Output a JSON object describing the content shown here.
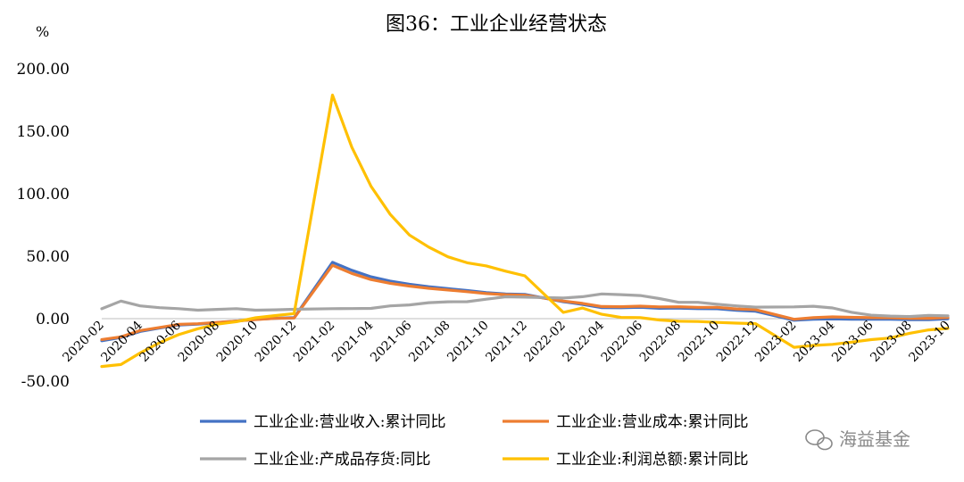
{
  "title": "图36：工业企业经营状态",
  "watermark": {
    "text": "海益基金",
    "icon": "wechat-icon",
    "color": "#8a8a8a"
  },
  "chart_data": {
    "type": "line",
    "title": "图36：工业企业经营状态",
    "ylabel": "%",
    "ylim": [
      -50,
      200
    ],
    "yticks": [
      "200.00",
      "150.00",
      "100.00",
      "50.00",
      "0.00",
      "-50.00"
    ],
    "ytick_values": [
      200,
      150,
      100,
      50,
      0,
      -50
    ],
    "grid": false,
    "legend_position": "bottom",
    "x": [
      "2020-02",
      "2020-03",
      "2020-04",
      "2020-05",
      "2020-06",
      "2020-07",
      "2020-08",
      "2020-09",
      "2020-10",
      "2020-11",
      "2020-12",
      "2021-01",
      "2021-02",
      "2021-03",
      "2021-04",
      "2021-05",
      "2021-06",
      "2021-07",
      "2021-08",
      "2021-09",
      "2021-10",
      "2021-11",
      "2021-12",
      "2022-01",
      "2022-02",
      "2022-03",
      "2022-04",
      "2022-05",
      "2022-06",
      "2022-07",
      "2022-08",
      "2022-09",
      "2022-10",
      "2022-11",
      "2022-12",
      "2023-01",
      "2023-02",
      "2023-03",
      "2023-04",
      "2023-05",
      "2023-06",
      "2023-07",
      "2023-08",
      "2023-09",
      "2023-10"
    ],
    "xticks": [
      "2020-02",
      "2020-04",
      "2020-06",
      "2020-08",
      "2020-10",
      "2020-12",
      "2021-02",
      "2021-04",
      "2021-06",
      "2021-08",
      "2021-10",
      "2021-12",
      "2022-02",
      "2022-04",
      "2022-06",
      "2022-08",
      "2022-10",
      "2022-12",
      "2023-02",
      "2023-04",
      "2023-06",
      "2023-08",
      "2023-10"
    ],
    "series": [
      {
        "name": "工业企业:营业收入:累计同比",
        "color": "#4472C4",
        "values": [
          -17.7,
          -15.1,
          -10.2,
          -7.6,
          -5.1,
          -4.4,
          -3.2,
          -1.9,
          -0.6,
          0.3,
          0.8,
          null,
          45.1,
          38.7,
          33.5,
          30.1,
          27.6,
          25.6,
          24.0,
          22.5,
          20.8,
          19.8,
          19.4,
          null,
          13.6,
          11.4,
          8.8,
          8.7,
          9.1,
          8.3,
          8.4,
          8.0,
          7.9,
          6.7,
          5.9,
          null,
          -1.3,
          -0.5,
          -0.2,
          -0.4,
          -0.4,
          -0.5,
          -0.8,
          -0.8,
          -0.1
        ]
      },
      {
        "name": "工业企业:营业成本:累计同比",
        "color": "#ED7D31",
        "values": [
          -16.7,
          -14.6,
          -9.5,
          -7.1,
          -4.6,
          -4.1,
          -3.0,
          -1.9,
          -0.7,
          0.2,
          0.5,
          null,
          42.7,
          36.2,
          31.3,
          28.3,
          26.1,
          24.3,
          22.9,
          21.6,
          20.1,
          19.2,
          18.8,
          null,
          14.1,
          12.2,
          9.7,
          9.6,
          10.0,
          9.4,
          9.5,
          9.1,
          9.1,
          7.8,
          7.2,
          null,
          -0.5,
          0.8,
          1.4,
          1.1,
          0.8,
          0.7,
          0.3,
          0.3,
          0.9
        ]
      },
      {
        "name": "工业企业:产成品存货:同比",
        "color": "#A5A5A5",
        "values": [
          7.9,
          14.1,
          10.2,
          8.8,
          8.0,
          6.8,
          7.4,
          8.0,
          6.8,
          7.1,
          7.5,
          null,
          8.0,
          8.1,
          8.2,
          10.2,
          11.0,
          12.8,
          13.5,
          13.6,
          15.6,
          17.5,
          17.2,
          null,
          16.5,
          17.6,
          19.8,
          19.2,
          18.5,
          16.1,
          13.1,
          13.1,
          11.5,
          10.2,
          9.2,
          null,
          9.4,
          9.9,
          8.6,
          5.1,
          2.8,
          2.1,
          1.7,
          2.6,
          2.2
        ]
      },
      {
        "name": "工业企业:利润总额:累计同比",
        "color": "#FFC000",
        "values": [
          -38.3,
          -36.7,
          -27.4,
          -19.3,
          -12.8,
          -8.1,
          -4.4,
          -2.4,
          0.7,
          2.4,
          4.1,
          null,
          178.9,
          137.3,
          106.0,
          83.4,
          66.9,
          57.3,
          49.5,
          44.7,
          42.2,
          38.0,
          34.3,
          null,
          5.0,
          8.5,
          3.5,
          1.0,
          0.8,
          -1.1,
          -2.1,
          -2.3,
          -3.0,
          -3.6,
          -4.0,
          null,
          -22.9,
          -21.4,
          -20.6,
          -18.8,
          -16.8,
          -15.5,
          -11.7,
          -9.0,
          -7.8
        ]
      }
    ]
  }
}
